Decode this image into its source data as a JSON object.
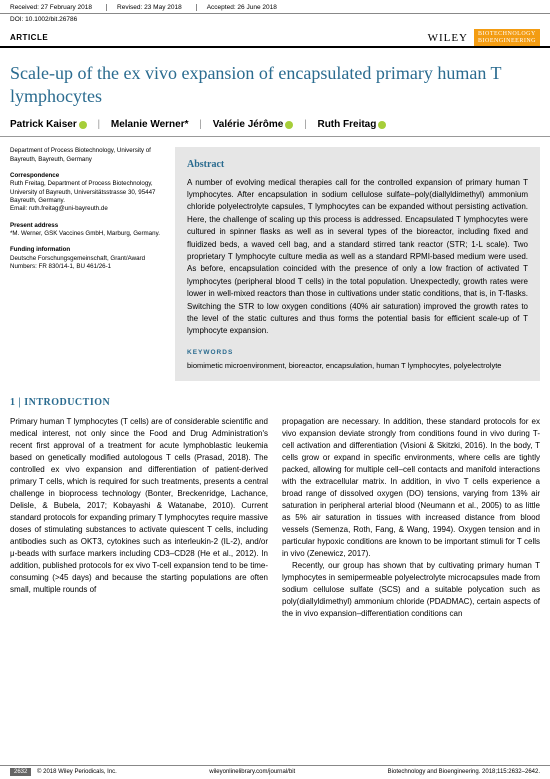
{
  "meta": {
    "received": "Received: 27 February 2018",
    "revised": "Revised: 23 May 2018",
    "accepted": "Accepted: 26 June 2018",
    "doi": "DOI: 10.1002/bit.26786"
  },
  "header": {
    "article_type": "ARTICLE",
    "publisher": "WILEY",
    "journal_line1": "BIOTECHNOLOGY",
    "journal_line2": "BIOENGINEERING"
  },
  "title": "Scale-up of the ex vivo expansion of encapsulated primary human T lymphocytes",
  "authors": {
    "a1": "Patrick Kaiser",
    "a2": "Melanie Werner*",
    "a3": "Valérie Jérôme",
    "a4": "Ruth Freitag"
  },
  "left": {
    "affil": "Department of Process Biotechnology, University of Bayreuth, Bayreuth, Germany",
    "corr_lbl": "Correspondence",
    "corr": "Ruth Freitag, Department of Process Biotechnology, University of Bayreuth, Universitätsstrasse 30, 95447 Bayreuth, Germany.",
    "email": "Email: ruth.freitag@uni-bayreuth.de",
    "pres_lbl": "Present address",
    "pres": "*M. Werner, GSK Vaccines GmbH, Marburg, Germany.",
    "fund_lbl": "Funding information",
    "fund": "Deutsche Forschungsgemeinschaft, Grant/Award Numbers: FR 830/14-1, BU 461/26-1"
  },
  "abstract": {
    "heading": "Abstract",
    "text": "A number of evolving medical therapies call for the controlled expansion of primary human T lymphocytes. After encapsulation in sodium cellulose sulfate–poly(diallyldimethyl) ammonium chloride polyelectrolyte capsules, T lymphocytes can be expanded without persisting activation. Here, the challenge of scaling up this process is addressed. Encapsulated T lymphocytes were cultured in spinner flasks as well as in several types of the bioreactor, including fixed and fluidized beds, a waved cell bag, and a standard stirred tank reactor (STR; 1-L scale). Two proprietary T lymphocyte culture media as well as a standard RPMI-based medium were used. As before, encapsulation coincided with the presence of only a low fraction of activated T lymphocytes (peripheral blood T cells) in the total population. Unexpectedly, growth rates were lower in well-mixed reactors than those in cultivations under static conditions, that is, in T-flasks. Switching the STR to low oxygen conditions (40% air saturation) improved the growth rates to the level of the static cultures and thus forms the potential basis for efficient scale-up of T lymphocyte expansion.",
    "kw_lbl": "KEYWORDS",
    "kw": "biomimetic microenvironment, bioreactor, encapsulation, human T lymphocytes, polyelectrolyte"
  },
  "intro": {
    "heading": "1 | INTRODUCTION",
    "col1": "Primary human T lymphocytes (T cells) are of considerable scientific and medical interest, not only since the Food and Drug Administration's recent first approval of a treatment for acute lymphoblastic leukemia based on genetically modified autologous T cells (Prasad, 2018). The controlled ex vivo expansion and differentiation of patient-derived primary T cells, which is required for such treatments, presents a central challenge in bioprocess technology (Bonter, Breckenridge, Lachance, Delisle, & Bubela, 2017; Kobayashi & Watanabe, 2010). Current standard protocols for expanding primary T lymphocytes require massive doses of stimulating substances to activate quiescent T cells, including antibodies such as OKT3, cytokines such as interleukin-2 (IL-2), and/or μ-beads with surface markers including CD3–CD28 (He et al., 2012). In addition, published protocols for ex vivo T-cell expansion tend to be time-consuming (>45 days) and because the starting populations are often small, multiple rounds of",
    "col2a": "propagation are necessary. In addition, these standard protocols for ex vivo expansion deviate strongly from conditions found in vivo during T-cell activation and differentiation (Visioni & Skitzki, 2016). In the body, T cells grow or expand in specific environments, where cells are tightly packed, allowing for multiple cell–cell contacts and manifold interactions with the extracellular matrix. In addition, in vivo T cells experience a broad range of dissolved oxygen (DO) tensions, varying from 13% air saturation in peripheral arterial blood (Neumann et al., 2005) to as little as 5% air saturation in tissues with increased distance from blood vessels (Semenza, Roth, Fang, & Wang, 1994). Oxygen tension and in particular hypoxic conditions are known to be important stimuli for T cells in vivo (Zenewicz, 2017).",
    "col2b": "Recently, our group has shown that by cultivating primary human T lymphocytes in semipermeable polyelectrolyte microcapsules made from sodium cellulose sulfate (SCS) and a suitable polycation such as poly(diallyldimethyl) ammonium chloride (PDADMAC), certain aspects of the in vivo expansion–differentiation conditions can"
  },
  "footer": {
    "page": "2632",
    "copyright": "© 2018 Wiley Periodicals, Inc.",
    "url": "wileyonlinelibrary.com/journal/bit",
    "citation": "Biotechnology and Bioengineering. 2018;115:2632–2642."
  },
  "colors": {
    "accent": "#2a6b8f",
    "orange": "#f39c12",
    "abstract_bg": "#e6e6e6"
  }
}
